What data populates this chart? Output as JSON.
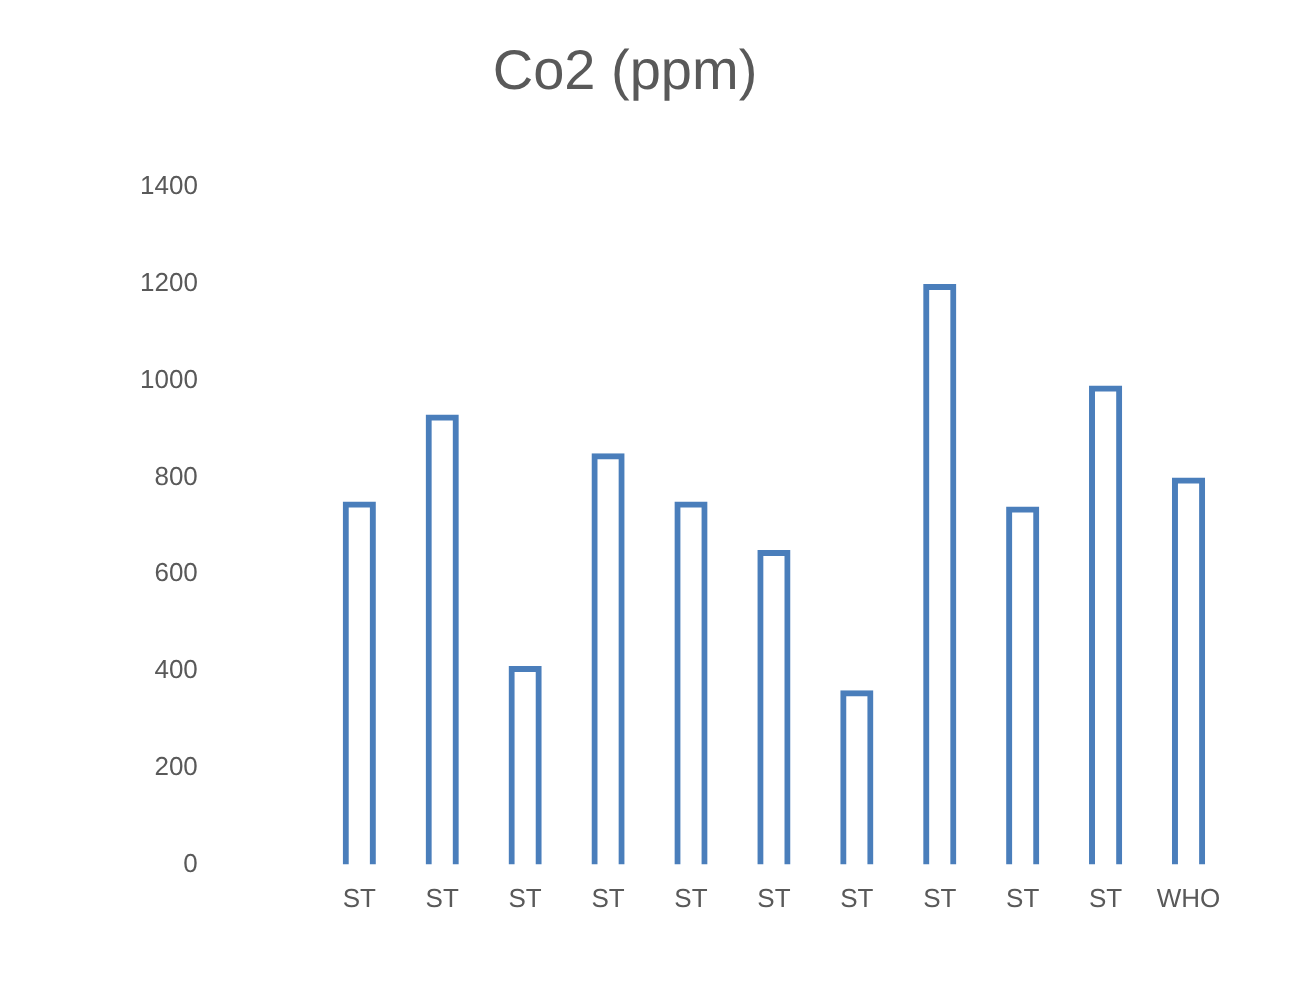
{
  "chart_data": {
    "type": "bar",
    "title": "Co2 (ppm)",
    "categories": [
      "ST",
      "ST",
      "ST",
      "ST",
      "ST",
      "ST",
      "ST",
      "ST",
      "ST",
      "ST",
      "WHO"
    ],
    "values": [
      750,
      930,
      410,
      850,
      750,
      650,
      360,
      1200,
      740,
      990,
      800
    ],
    "color": "#4a7ebb",
    "ylim": [
      0,
      1400
    ],
    "yticks": [
      0,
      200,
      400,
      600,
      800,
      1000,
      1200,
      1400
    ],
    "grid": false,
    "legend": false
  }
}
